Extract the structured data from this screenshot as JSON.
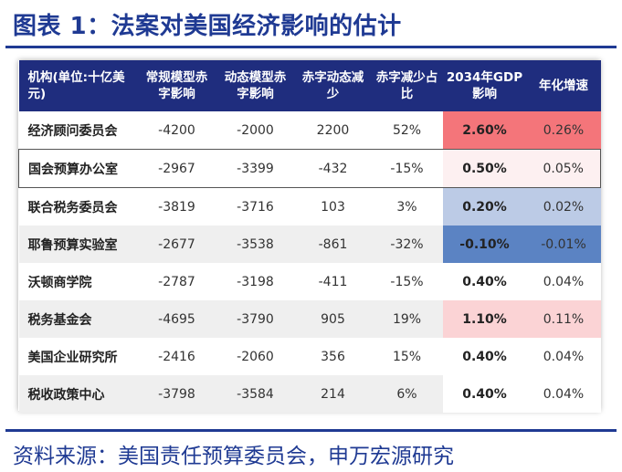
{
  "title": "图表 1：法案对美国经济影响的估计",
  "source": "资料来源：美国责任预算委员会，申万宏源研究",
  "table": {
    "headers": [
      "机构(单位:十亿美元)",
      "常规模型赤字影响",
      "动态模型赤字影响",
      "赤字动态减少",
      "赤字减少占比",
      "2034年GDP影响",
      "年化增速"
    ],
    "rows": [
      {
        "name": "经济顾问委员会",
        "static": "-4200",
        "dynamic": "-2000",
        "reduction": "2200",
        "share": "52%",
        "gdp": "2.60%",
        "growth": "0.26%",
        "highlight": "#f4757a"
      },
      {
        "name": "国会预算办公室",
        "static": "-2967",
        "dynamic": "-3399",
        "reduction": "-432",
        "share": "-15%",
        "gdp": "0.50%",
        "growth": "0.05%",
        "highlight": "#fdf0f1"
      },
      {
        "name": "联合税务委员会",
        "static": "-3819",
        "dynamic": "-3716",
        "reduction": "103",
        "share": "3%",
        "gdp": "0.20%",
        "growth": "0.02%",
        "highlight": "#bccbe6"
      },
      {
        "name": "耶鲁预算实验室",
        "static": "-2677",
        "dynamic": "-3538",
        "reduction": "-861",
        "share": "-32%",
        "gdp": "-0.10%",
        "growth": "-0.01%",
        "highlight": "#5b83c3"
      },
      {
        "name": "沃顿商学院",
        "static": "-2787",
        "dynamic": "-3198",
        "reduction": "-411",
        "share": "-15%",
        "gdp": "0.40%",
        "growth": "0.04%",
        "highlight": "#ffffff"
      },
      {
        "name": "税务基金会",
        "static": "-4695",
        "dynamic": "-3790",
        "reduction": "905",
        "share": "19%",
        "gdp": "1.10%",
        "growth": "0.11%",
        "highlight": "#fbd3d5"
      },
      {
        "name": "美国企业研究所",
        "static": "-2416",
        "dynamic": "-2060",
        "reduction": "356",
        "share": "15%",
        "gdp": "0.40%",
        "growth": "0.04%",
        "highlight": "#ffffff"
      },
      {
        "name": "税收政策中心",
        "static": "-3798",
        "dynamic": "-3584",
        "reduction": "214",
        "share": "6%",
        "gdp": "0.40%",
        "growth": "0.04%",
        "highlight": "#ffffff"
      }
    ]
  }
}
